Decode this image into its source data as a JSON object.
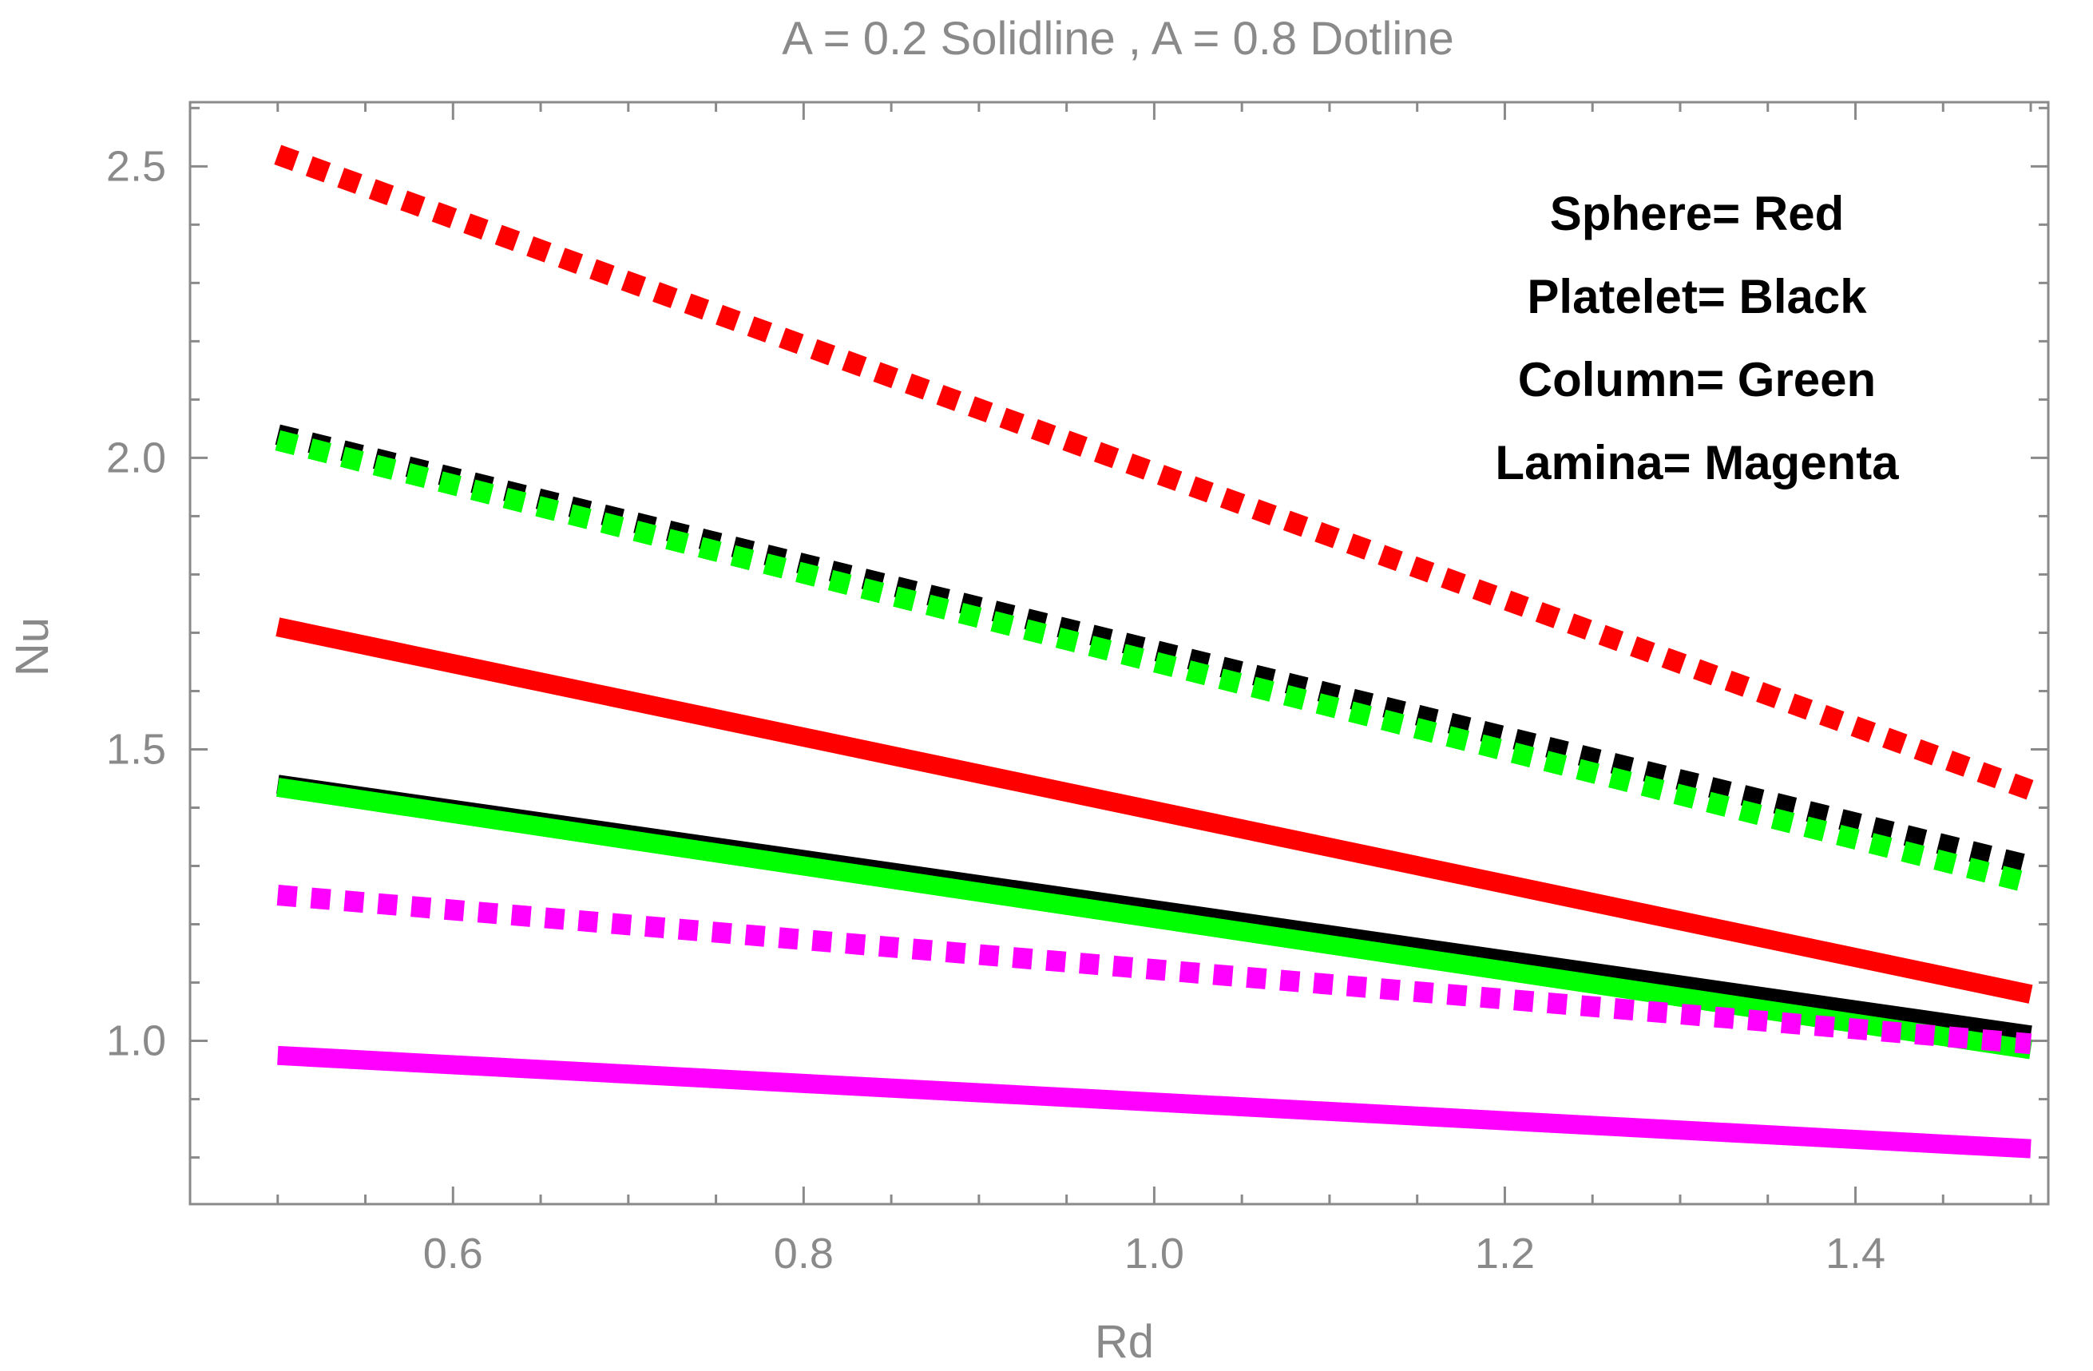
{
  "chart_data": {
    "type": "line",
    "title": "A = 0.2  Solidline  , A = 0.8  Dotline",
    "xlabel": "Rd",
    "ylabel": "Nu",
    "xlim": [
      0.45,
      1.51
    ],
    "ylim": [
      0.72,
      2.61
    ],
    "x_ticks": [
      {
        "value": 0.6,
        "label": "0.6"
      },
      {
        "value": 0.8,
        "label": "0.8"
      },
      {
        "value": 1.0,
        "label": "1.0"
      },
      {
        "value": 1.2,
        "label": "1.2"
      },
      {
        "value": 1.4,
        "label": "1.4"
      }
    ],
    "x_minor_step": 0.05,
    "y_ticks": [
      {
        "value": 1.0,
        "label": "1.0"
      },
      {
        "value": 1.5,
        "label": "1.5"
      },
      {
        "value": 2.0,
        "label": "2.0"
      },
      {
        "value": 2.5,
        "label": "2.5"
      }
    ],
    "y_minor_step": 0.1,
    "legend": [
      "Sphere= Red",
      "Platelet= Black",
      "Column= Green",
      "Lamina= Magenta"
    ],
    "legend_position": "top-right",
    "series": [
      {
        "name": "Sphere A = 0.8",
        "color": "#ff0000",
        "style": "dotted",
        "x": [
          0.5,
          1.5
        ],
        "y": [
          2.52,
          1.43
        ]
      },
      {
        "name": "Platelet A = 0.8",
        "color": "#000000",
        "style": "dotted",
        "x": [
          0.5,
          1.5
        ],
        "y": [
          2.04,
          1.3
        ]
      },
      {
        "name": "Column A = 0.8",
        "color": "#00ff00",
        "style": "dotted",
        "x": [
          0.5,
          1.5
        ],
        "y": [
          2.03,
          1.27
        ]
      },
      {
        "name": "Sphere A = 0.2",
        "color": "#ff0000",
        "style": "solid",
        "x": [
          0.5,
          1.5
        ],
        "y": [
          1.71,
          1.08
        ]
      },
      {
        "name": "Platelet A = 0.2",
        "color": "#000000",
        "style": "solid",
        "x": [
          0.5,
          1.5
        ],
        "y": [
          1.44,
          1.01
        ]
      },
      {
        "name": "Column A = 0.2",
        "color": "#00ff00",
        "style": "solid",
        "x": [
          0.5,
          1.5
        ],
        "y": [
          1.435,
          0.985
        ]
      },
      {
        "name": "Lamina A = 0.8",
        "color": "#ff00ff",
        "style": "dotted",
        "x": [
          0.5,
          1.5
        ],
        "y": [
          1.25,
          0.995
        ]
      },
      {
        "name": "Lamina A = 0.2",
        "color": "#ff00ff",
        "style": "solid",
        "x": [
          0.5,
          1.5
        ],
        "y": [
          0.975,
          0.815
        ]
      }
    ]
  }
}
